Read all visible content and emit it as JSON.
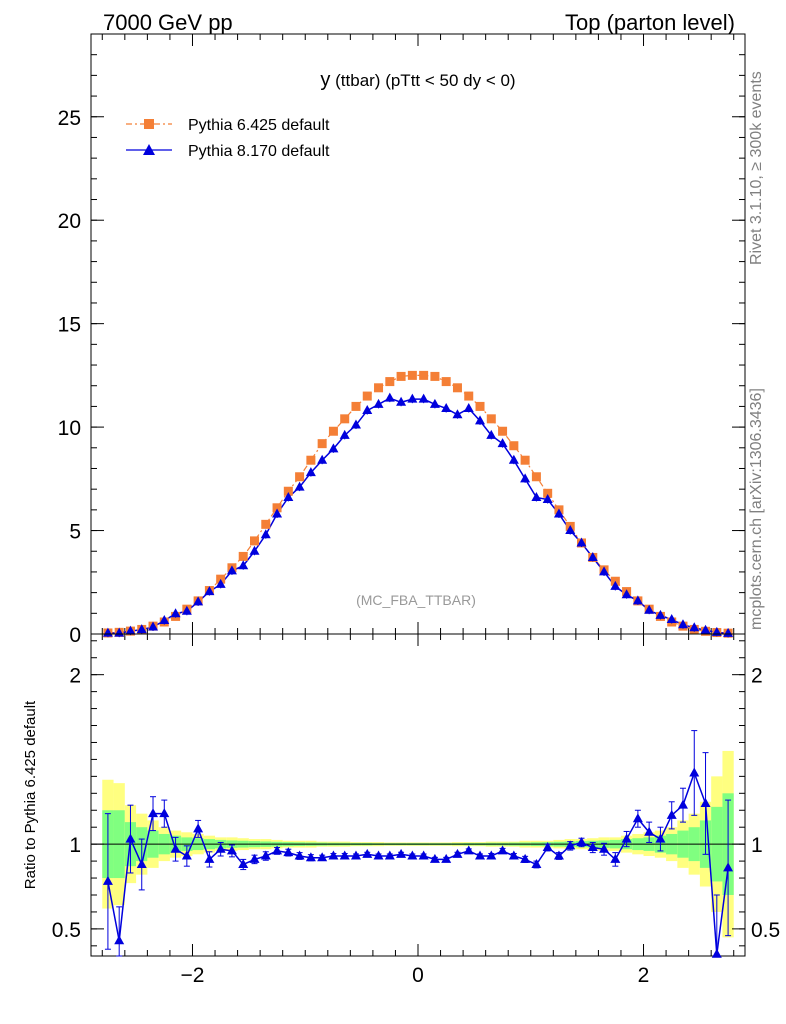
{
  "header": {
    "left": "7000 GeV pp",
    "right": "Top (parton level)"
  },
  "side_labels": {
    "rivet": "Rivet 3.1.10, ≥ 300k events",
    "mcplots": "mcplots.cern.ch [arXiv:1306.3436]"
  },
  "colors": {
    "pythia6": "#f47f36",
    "pythia8": "#0000dd",
    "band_yellow": "#ffff80",
    "band_green": "#80ff80"
  },
  "chart_data": [
    {
      "type": "line",
      "title": "y (ttbar) (pTtt < 50 dy < 0)",
      "title_main": "y",
      "title_rest": " (ttbar) (pTtt < 50 dy < 0)",
      "annotation": "(MC_FBA_TTBAR)",
      "xlim": [
        -2.9,
        2.9
      ],
      "ylim": [
        0,
        29
      ],
      "yticks": [
        0,
        5,
        10,
        15,
        20,
        25
      ],
      "ytick_labels": [
        "0",
        "5",
        "10",
        "15",
        "20",
        "25"
      ],
      "legend_position": "top-left",
      "x": [
        -2.75,
        -2.65,
        -2.55,
        -2.45,
        -2.35,
        -2.25,
        -2.15,
        -2.05,
        -1.95,
        -1.85,
        -1.75,
        -1.65,
        -1.55,
        -1.45,
        -1.35,
        -1.25,
        -1.15,
        -1.05,
        -0.95,
        -0.85,
        -0.75,
        -0.65,
        -0.55,
        -0.45,
        -0.35,
        -0.25,
        -0.15,
        -0.05,
        0.05,
        0.15,
        0.25,
        0.35,
        0.45,
        0.55,
        0.65,
        0.75,
        0.85,
        0.95,
        1.05,
        1.15,
        1.25,
        1.35,
        1.45,
        1.55,
        1.65,
        1.75,
        1.85,
        1.95,
        2.05,
        2.15,
        2.25,
        2.35,
        2.45,
        2.55,
        2.65,
        2.75
      ],
      "series": [
        {
          "name": "Pythia 6.425 default",
          "marker": "square",
          "values": [
            0.05,
            0.08,
            0.14,
            0.22,
            0.38,
            0.58,
            0.85,
            1.2,
            1.6,
            2.1,
            2.65,
            3.2,
            3.75,
            4.5,
            5.3,
            6.1,
            6.9,
            7.6,
            8.4,
            9.2,
            9.8,
            10.4,
            11.0,
            11.5,
            11.9,
            12.2,
            12.45,
            12.5,
            12.5,
            12.45,
            12.2,
            11.9,
            11.5,
            11.0,
            10.4,
            9.8,
            9.1,
            8.4,
            7.6,
            6.8,
            6.0,
            5.2,
            4.4,
            3.7,
            3.1,
            2.55,
            2.05,
            1.6,
            1.2,
            0.85,
            0.58,
            0.38,
            0.22,
            0.13,
            0.07,
            0.04
          ]
        },
        {
          "name": "Pythia 8.170 default",
          "marker": "triangle",
          "values": [
            0.04,
            0.04,
            0.14,
            0.21,
            0.34,
            0.65,
            0.98,
            1.1,
            1.55,
            2.05,
            2.4,
            3.05,
            3.3,
            4.0,
            4.8,
            5.8,
            6.6,
            7.1,
            7.8,
            8.4,
            8.95,
            9.6,
            10.1,
            10.8,
            11.1,
            11.4,
            11.2,
            11.35,
            11.35,
            11.1,
            10.9,
            10.6,
            10.9,
            10.3,
            9.6,
            9.2,
            8.4,
            7.5,
            6.6,
            6.5,
            5.8,
            5.0,
            4.4,
            3.7,
            3.0,
            2.3,
            1.9,
            1.6,
            1.15,
            0.9,
            0.7,
            0.45,
            0.3,
            0.18,
            0.08,
            0.03
          ]
        }
      ]
    },
    {
      "type": "line",
      "ylabel": "Ratio to Pythia 6.425 default",
      "xlim": [
        -2.9,
        2.9
      ],
      "ylim": [
        0.34,
        2.24
      ],
      "yticks": [
        0.5,
        1,
        2
      ],
      "ytick_labels": [
        "0.5",
        "1",
        "2"
      ],
      "xticks": [
        -2,
        0,
        2
      ],
      "xtick_labels": [
        "−2",
        "0",
        "2"
      ],
      "x": [
        -2.75,
        -2.65,
        -2.55,
        -2.45,
        -2.35,
        -2.25,
        -2.15,
        -2.05,
        -1.95,
        -1.85,
        -1.75,
        -1.65,
        -1.55,
        -1.45,
        -1.35,
        -1.25,
        -1.15,
        -1.05,
        -0.95,
        -0.85,
        -0.75,
        -0.65,
        -0.55,
        -0.45,
        -0.35,
        -0.25,
        -0.15,
        -0.05,
        0.05,
        0.15,
        0.25,
        0.35,
        0.45,
        0.55,
        0.65,
        0.75,
        0.85,
        0.95,
        1.05,
        1.15,
        1.25,
        1.35,
        1.45,
        1.55,
        1.65,
        1.75,
        1.85,
        1.95,
        2.05,
        2.15,
        2.25,
        2.35,
        2.45,
        2.55,
        2.65,
        2.75
      ],
      "band_yellow": [
        0.38,
        0.36,
        0.23,
        0.18,
        0.14,
        0.1,
        0.08,
        0.07,
        0.06,
        0.05,
        0.04,
        0.04,
        0.035,
        0.03,
        0.03,
        0.025,
        0.02,
        0.02,
        0.02,
        0.015,
        0.015,
        0.015,
        0.012,
        0.012,
        0.012,
        0.01,
        0.01,
        0.01,
        0.01,
        0.01,
        0.01,
        0.012,
        0.012,
        0.012,
        0.015,
        0.015,
        0.015,
        0.02,
        0.02,
        0.02,
        0.025,
        0.03,
        0.03,
        0.035,
        0.04,
        0.04,
        0.05,
        0.06,
        0.07,
        0.08,
        0.1,
        0.14,
        0.18,
        0.25,
        0.4,
        0.55
      ],
      "band_green": [
        0.2,
        0.2,
        0.13,
        0.1,
        0.08,
        0.06,
        0.05,
        0.04,
        0.035,
        0.03,
        0.025,
        0.022,
        0.02,
        0.018,
        0.016,
        0.014,
        0.012,
        0.011,
        0.01,
        0.009,
        0.008,
        0.008,
        0.007,
        0.007,
        0.006,
        0.006,
        0.006,
        0.006,
        0.006,
        0.006,
        0.006,
        0.006,
        0.007,
        0.007,
        0.008,
        0.008,
        0.009,
        0.01,
        0.011,
        0.012,
        0.014,
        0.016,
        0.018,
        0.02,
        0.022,
        0.025,
        0.03,
        0.035,
        0.04,
        0.05,
        0.06,
        0.08,
        0.1,
        0.14,
        0.22,
        0.3
      ],
      "series": [
        {
          "name": "Pythia 8.170 default",
          "values": [
            0.78,
            0.43,
            1.03,
            0.88,
            1.18,
            1.18,
            0.97,
            0.93,
            1.09,
            0.91,
            0.97,
            0.96,
            0.88,
            0.91,
            0.93,
            0.96,
            0.95,
            0.93,
            0.92,
            0.92,
            0.93,
            0.93,
            0.93,
            0.94,
            0.93,
            0.93,
            0.94,
            0.93,
            0.93,
            0.91,
            0.91,
            0.94,
            0.96,
            0.93,
            0.93,
            0.96,
            0.93,
            0.91,
            0.88,
            0.98,
            0.93,
            0.99,
            1.01,
            0.98,
            0.97,
            0.91,
            1.03,
            1.15,
            1.07,
            1.03,
            1.17,
            1.23,
            1.42,
            1.24,
            0.35,
            0.86
          ],
          "errors": [
            0.4,
            0.2,
            0.2,
            0.15,
            0.1,
            0.08,
            0.07,
            0.06,
            0.05,
            0.045,
            0.04,
            0.035,
            0.03,
            0.025,
            0.025,
            0.02,
            0.02,
            0.02,
            0.018,
            0.015,
            0.015,
            0.015,
            0.012,
            0.012,
            0.012,
            0.012,
            0.012,
            0.012,
            0.012,
            0.012,
            0.012,
            0.012,
            0.012,
            0.012,
            0.015,
            0.015,
            0.015,
            0.018,
            0.02,
            0.02,
            0.02,
            0.025,
            0.025,
            0.03,
            0.035,
            0.04,
            0.045,
            0.05,
            0.06,
            0.07,
            0.08,
            0.1,
            0.25,
            0.3,
            0.35,
            0.4
          ]
        }
      ]
    }
  ]
}
